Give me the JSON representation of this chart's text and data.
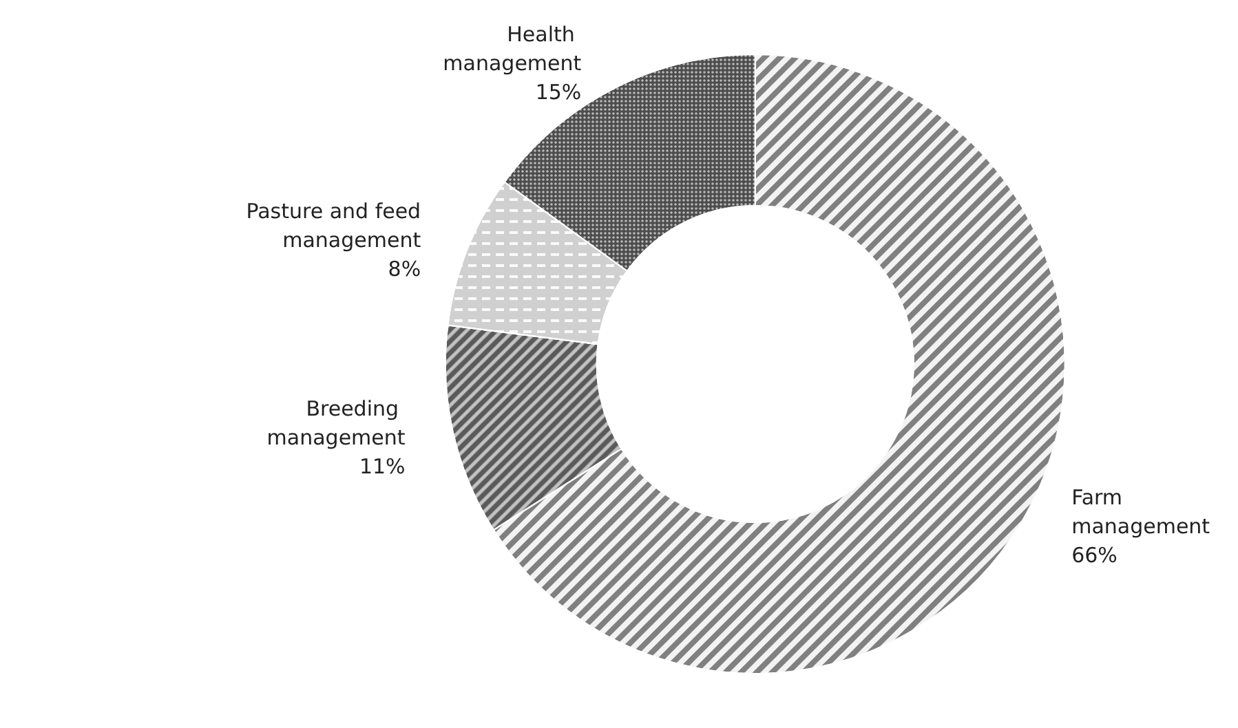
{
  "chart_data": {
    "type": "donut",
    "categories": [
      "Farm management",
      "Breeding management",
      "Pasture and feed management",
      "Health management"
    ],
    "values": [
      66,
      11,
      8,
      15
    ],
    "colors": [
      "#808080",
      "#5a5a5a",
      "#d0d0d0",
      "#4d4d4d"
    ],
    "value_labels": [
      "66%",
      "11%",
      "8%",
      "15%"
    ],
    "legend": false
  }
}
